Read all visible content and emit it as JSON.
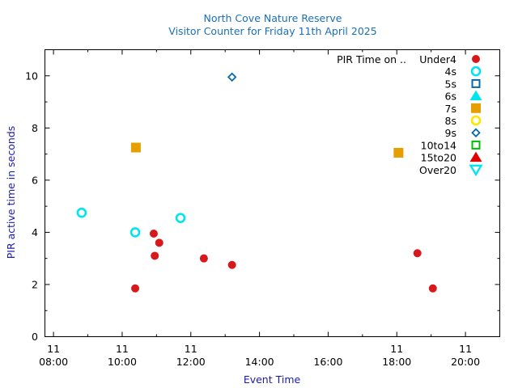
{
  "chart_data": {
    "type": "scatter",
    "title": "North Cove Nature Reserve",
    "subtitle": "Visitor Counter for Friday 11th April 2025",
    "xlabel": "Event Time",
    "ylabel": "PIR active time in seconds",
    "xlim": [
      7.75,
      21.0
    ],
    "ylim": [
      0,
      11
    ],
    "x_ticks": [
      {
        "value": 8,
        "day": "11",
        "time": "08:00"
      },
      {
        "value": 10,
        "day": "11",
        "time": "10:00"
      },
      {
        "value": 12,
        "day": "11",
        "time": "12:00"
      },
      {
        "value": 14,
        "day": "",
        "time": "14:00"
      },
      {
        "value": 16,
        "day": "",
        "time": "16:00"
      },
      {
        "value": 18,
        "day": "11",
        "time": "18:00"
      },
      {
        "value": 20,
        "day": "11",
        "time": "20:00"
      }
    ],
    "y_ticks": [
      0,
      2,
      4,
      6,
      8,
      10
    ],
    "legend_title": "PIR Time on ..",
    "legend_position": "top-right",
    "x_unit": "hour of day",
    "series": [
      {
        "name": "Under4",
        "marker": "circle-filled",
        "color": "#d7191c",
        "points": [
          [
            10.38,
            1.85
          ],
          [
            10.92,
            3.95
          ],
          [
            10.95,
            3.1
          ],
          [
            11.08,
            3.6
          ],
          [
            12.38,
            3.0
          ],
          [
            13.2,
            2.75
          ],
          [
            18.6,
            3.2
          ],
          [
            19.05,
            1.85
          ]
        ]
      },
      {
        "name": "4s",
        "marker": "circle-open",
        "color": "#00e5ee",
        "points": [
          [
            8.82,
            4.75
          ],
          [
            10.38,
            4.0
          ],
          [
            11.7,
            4.55
          ]
        ]
      },
      {
        "name": "5s",
        "marker": "square-open",
        "color": "#0868ac",
        "points": []
      },
      {
        "name": "6s",
        "marker": "triangle-filled",
        "color": "#00e5ee",
        "points": []
      },
      {
        "name": "7s",
        "marker": "square-filled",
        "color": "#e69f00",
        "points": [
          [
            10.4,
            7.25
          ],
          [
            18.05,
            7.05
          ]
        ]
      },
      {
        "name": "8s",
        "marker": "circle-open",
        "color": "#ffe600",
        "points": []
      },
      {
        "name": "9s",
        "marker": "diamond-open",
        "color": "#0868ac",
        "points": [
          [
            13.2,
            9.95
          ]
        ]
      },
      {
        "name": "10to14",
        "marker": "square-open",
        "color": "#00c000",
        "points": []
      },
      {
        "name": "15to20",
        "marker": "triangle-filled",
        "color": "#e00000",
        "points": []
      },
      {
        "name": "Over20",
        "marker": "triangle-down-open",
        "color": "#00e5ee",
        "points": []
      }
    ]
  },
  "colors": {
    "title": "#1a6fb5",
    "axis_label": "#1a1ab5",
    "axis": "#000000"
  }
}
